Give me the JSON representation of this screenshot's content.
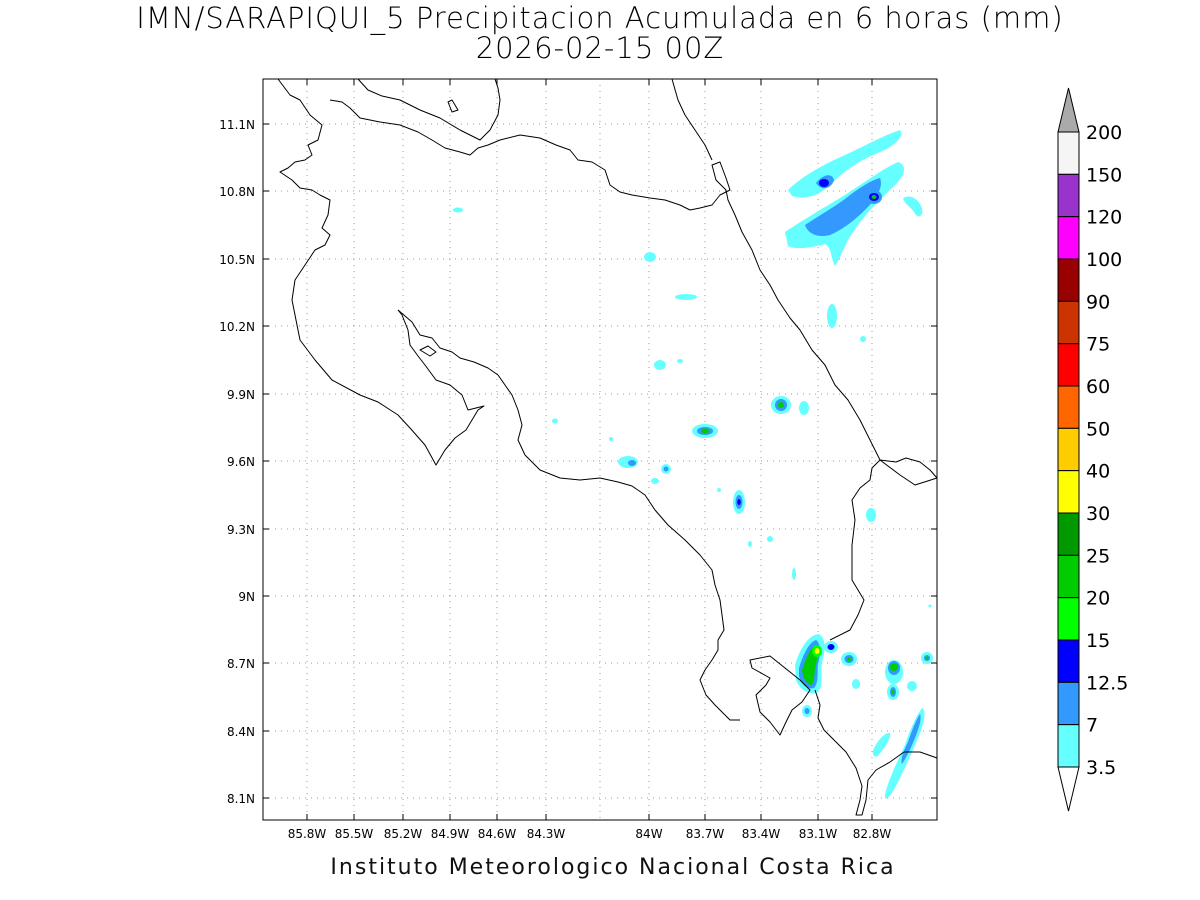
{
  "title": {
    "line1": "IMN/SARAPIQUI_5 Precipitacion Acumulada en 6 horas (mm)",
    "line2": "2026-02-15 00Z"
  },
  "footer": "Instituto Meteorologico Nacional Costa Rica",
  "map": {
    "lon_ticks": [
      "85.8W",
      "85.5W",
      "85.2W",
      "84.9W",
      "84.6W",
      "84.3W",
      "84W",
      "83.7W",
      "83.4W",
      "83.1W",
      "82.8W"
    ],
    "lat_ticks": [
      "11.1N",
      "10.8N",
      "10.5N",
      "10.2N",
      "9.9N",
      "9.6N",
      "9.3N",
      "9N",
      "8.7N",
      "8.4N",
      "8.1N"
    ],
    "grid": "dotted",
    "projection": "lat-lon"
  },
  "colorbar": {
    "labels": [
      "200",
      "150",
      "120",
      "100",
      "90",
      "75",
      "60",
      "50",
      "40",
      "30",
      "25",
      "20",
      "15",
      "12.5",
      "7",
      "3.5"
    ],
    "colors": [
      "#f5f5f5",
      "#9933cc",
      "#ff00ff",
      "#990000",
      "#cc3300",
      "#ff0000",
      "#ff6600",
      "#ffcc00",
      "#ffff00",
      "#009900",
      "#00cc00",
      "#00ff00",
      "#0000ff",
      "#3399ff",
      "#66ffff"
    ],
    "top_arrow_color": "#aaaaaa",
    "bottom_arrow_color": "#ffffff"
  },
  "colors": {
    "c3_5": "#66ffff",
    "c7": "#3399ff",
    "c12_5": "#0000ff",
    "c15": "#00ff00",
    "c20": "#00cc00",
    "c25": "#009900"
  }
}
